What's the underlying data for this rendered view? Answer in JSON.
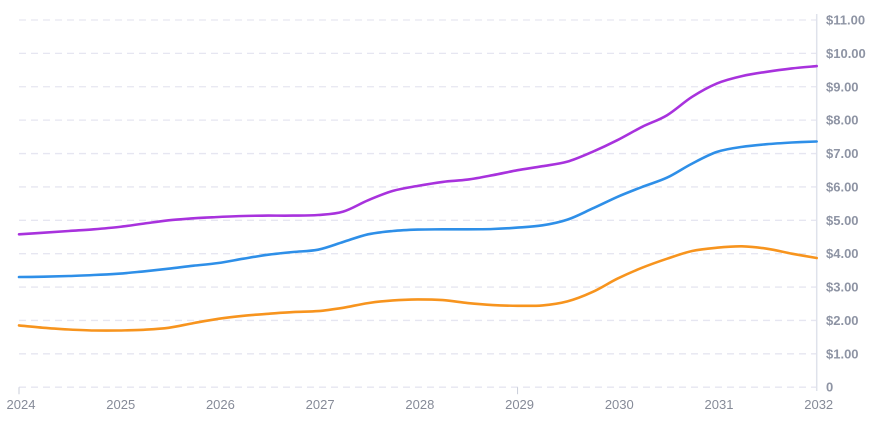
{
  "chart_data": {
    "type": "line",
    "title": "",
    "xlabel": "",
    "ylabel": "",
    "legend": "none",
    "grid": "horizontal-dashed",
    "xlim": [
      2024,
      2032
    ],
    "ylim": [
      0,
      11
    ],
    "x_tick_labels": [
      "2024",
      "2025",
      "2026",
      "2027",
      "2028",
      "2029",
      "2030",
      "2031",
      "2032"
    ],
    "x_tick_values": [
      2024,
      2025,
      2026,
      2027,
      2028,
      2029,
      2030,
      2031,
      2032
    ],
    "visible_tick_marks": [
      2024,
      2029
    ],
    "y_ticks": [
      {
        "label": "$11.00",
        "value": 11
      },
      {
        "label": "$10.00",
        "value": 10
      },
      {
        "label": "$9.00",
        "value": 9
      },
      {
        "label": "$8.00",
        "value": 8
      },
      {
        "label": "$7.00",
        "value": 7
      },
      {
        "label": "$6.00",
        "value": 6
      },
      {
        "label": "$5.00",
        "value": 5
      },
      {
        "label": "$4.00",
        "value": 4
      },
      {
        "label": "$3.00",
        "value": 3
      },
      {
        "label": "$2.00",
        "value": 2
      },
      {
        "label": "$1.00",
        "value": 1
      },
      {
        "label": "0",
        "value": 0
      }
    ],
    "series": [
      {
        "name": "series-purple",
        "color": "#a832dd",
        "points": [
          [
            2024.0,
            4.58
          ],
          [
            2024.25,
            4.63
          ],
          [
            2024.5,
            4.68
          ],
          [
            2024.75,
            4.73
          ],
          [
            2025.0,
            4.8
          ],
          [
            2025.25,
            4.9
          ],
          [
            2025.5,
            5.0
          ],
          [
            2025.75,
            5.06
          ],
          [
            2026.0,
            5.1
          ],
          [
            2026.25,
            5.13
          ],
          [
            2026.5,
            5.14
          ],
          [
            2026.75,
            5.14
          ],
          [
            2027.0,
            5.16
          ],
          [
            2027.25,
            5.26
          ],
          [
            2027.5,
            5.6
          ],
          [
            2027.75,
            5.88
          ],
          [
            2028.0,
            6.03
          ],
          [
            2028.25,
            6.15
          ],
          [
            2028.5,
            6.22
          ],
          [
            2028.75,
            6.35
          ],
          [
            2029.0,
            6.5
          ],
          [
            2029.25,
            6.62
          ],
          [
            2029.5,
            6.76
          ],
          [
            2029.75,
            7.05
          ],
          [
            2030.0,
            7.4
          ],
          [
            2030.25,
            7.8
          ],
          [
            2030.5,
            8.15
          ],
          [
            2030.75,
            8.7
          ],
          [
            2031.0,
            9.1
          ],
          [
            2031.25,
            9.32
          ],
          [
            2031.5,
            9.45
          ],
          [
            2031.75,
            9.55
          ],
          [
            2032.0,
            9.62
          ]
        ]
      },
      {
        "name": "series-blue",
        "color": "#2e8fe8",
        "points": [
          [
            2024.0,
            3.3
          ],
          [
            2024.25,
            3.31
          ],
          [
            2024.5,
            3.33
          ],
          [
            2024.75,
            3.36
          ],
          [
            2025.0,
            3.4
          ],
          [
            2025.25,
            3.47
          ],
          [
            2025.5,
            3.55
          ],
          [
            2025.75,
            3.64
          ],
          [
            2026.0,
            3.72
          ],
          [
            2026.25,
            3.85
          ],
          [
            2026.5,
            3.97
          ],
          [
            2026.75,
            4.05
          ],
          [
            2027.0,
            4.12
          ],
          [
            2027.25,
            4.35
          ],
          [
            2027.5,
            4.58
          ],
          [
            2027.75,
            4.68
          ],
          [
            2028.0,
            4.72
          ],
          [
            2028.25,
            4.73
          ],
          [
            2028.5,
            4.73
          ],
          [
            2028.75,
            4.74
          ],
          [
            2029.0,
            4.78
          ],
          [
            2029.25,
            4.85
          ],
          [
            2029.5,
            5.02
          ],
          [
            2029.75,
            5.35
          ],
          [
            2030.0,
            5.7
          ],
          [
            2030.25,
            6.0
          ],
          [
            2030.5,
            6.28
          ],
          [
            2030.75,
            6.7
          ],
          [
            2031.0,
            7.05
          ],
          [
            2031.25,
            7.2
          ],
          [
            2031.5,
            7.28
          ],
          [
            2031.75,
            7.33
          ],
          [
            2032.0,
            7.36
          ]
        ]
      },
      {
        "name": "series-orange",
        "color": "#f7941e",
        "points": [
          [
            2024.0,
            1.85
          ],
          [
            2024.25,
            1.78
          ],
          [
            2024.5,
            1.73
          ],
          [
            2024.75,
            1.7
          ],
          [
            2025.0,
            1.7
          ],
          [
            2025.25,
            1.72
          ],
          [
            2025.5,
            1.78
          ],
          [
            2025.75,
            1.92
          ],
          [
            2026.0,
            2.05
          ],
          [
            2026.25,
            2.14
          ],
          [
            2026.5,
            2.2
          ],
          [
            2026.75,
            2.25
          ],
          [
            2027.0,
            2.28
          ],
          [
            2027.25,
            2.38
          ],
          [
            2027.5,
            2.52
          ],
          [
            2027.75,
            2.6
          ],
          [
            2028.0,
            2.63
          ],
          [
            2028.25,
            2.61
          ],
          [
            2028.5,
            2.52
          ],
          [
            2028.75,
            2.46
          ],
          [
            2029.0,
            2.44
          ],
          [
            2029.25,
            2.45
          ],
          [
            2029.5,
            2.57
          ],
          [
            2029.75,
            2.85
          ],
          [
            2030.0,
            3.25
          ],
          [
            2030.25,
            3.58
          ],
          [
            2030.5,
            3.85
          ],
          [
            2030.75,
            4.08
          ],
          [
            2031.0,
            4.18
          ],
          [
            2031.25,
            4.22
          ],
          [
            2031.5,
            4.15
          ],
          [
            2031.75,
            4.0
          ],
          [
            2032.0,
            3.87
          ]
        ]
      }
    ],
    "colors": {
      "gridline": "#e6e6f1",
      "axis_line": "#dfe2eb",
      "tick_mark": "#c9cdd9",
      "y_label_text": "#8e94a4",
      "x_label_text": "#868b98",
      "background": "#ffffff"
    }
  }
}
